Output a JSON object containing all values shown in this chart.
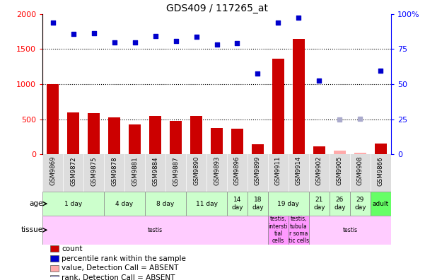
{
  "title": "GDS409 / 117265_at",
  "samples": [
    "GSM9869",
    "GSM9872",
    "GSM9875",
    "GSM9878",
    "GSM9881",
    "GSM9884",
    "GSM9887",
    "GSM9890",
    "GSM9893",
    "GSM9896",
    "GSM9899",
    "GSM9911",
    "GSM9914",
    "GSM9902",
    "GSM9905",
    "GSM9908",
    "GSM9866"
  ],
  "bar_values": [
    1000,
    600,
    590,
    530,
    430,
    550,
    480,
    550,
    375,
    370,
    145,
    1360,
    1650,
    110,
    50,
    20,
    155
  ],
  "dot_values_pct": [
    94,
    86,
    86.5,
    80,
    79.5,
    84.5,
    81,
    84,
    78,
    79,
    57.5,
    94,
    97.5,
    52.5,
    25,
    25.5,
    59.5
  ],
  "absent_indices": [
    14,
    15
  ],
  "bar_color": "#cc0000",
  "dot_color": "#0000cc",
  "absent_bar_color": "#ffaaaa",
  "absent_dot_color": "#aaaacc",
  "ylim_left": [
    0,
    2000
  ],
  "ylim_right": [
    0,
    100
  ],
  "yticks_left": [
    0,
    500,
    1000,
    1500,
    2000
  ],
  "yticks_right": [
    0,
    25,
    50,
    75,
    100
  ],
  "age_groups": [
    {
      "label": "1 day",
      "cols": [
        0,
        1,
        2
      ],
      "color": "#ccffcc"
    },
    {
      "label": "4 day",
      "cols": [
        3,
        4
      ],
      "color": "#ccffcc"
    },
    {
      "label": "8 day",
      "cols": [
        5,
        6
      ],
      "color": "#ccffcc"
    },
    {
      "label": "11 day",
      "cols": [
        7,
        8
      ],
      "color": "#ccffcc"
    },
    {
      "label": "14\nday",
      "cols": [
        9
      ],
      "color": "#ccffcc"
    },
    {
      "label": "18\nday",
      "cols": [
        10
      ],
      "color": "#ccffcc"
    },
    {
      "label": "19 day",
      "cols": [
        11,
        12
      ],
      "color": "#ccffcc"
    },
    {
      "label": "21\nday",
      "cols": [
        13
      ],
      "color": "#ccffcc"
    },
    {
      "label": "26\nday",
      "cols": [
        14
      ],
      "color": "#ccffcc"
    },
    {
      "label": "29\nday",
      "cols": [
        15
      ],
      "color": "#ccffcc"
    },
    {
      "label": "adult",
      "cols": [
        16
      ],
      "color": "#66ff66"
    }
  ],
  "tissue_groups": [
    {
      "label": "testis",
      "cols": [
        0,
        1,
        2,
        3,
        4,
        5,
        6,
        7,
        8,
        9,
        10
      ],
      "color": "#ffccff"
    },
    {
      "label": "testis,\nintersti\ntial\ncells",
      "cols": [
        11
      ],
      "color": "#ff99ff"
    },
    {
      "label": "testis,\ntubula\nr soma\ntic cells",
      "cols": [
        12
      ],
      "color": "#ff99ff"
    },
    {
      "label": "testis",
      "cols": [
        13,
        14,
        15,
        16
      ],
      "color": "#ffccff"
    }
  ],
  "legend_items": [
    {
      "label": "count",
      "color": "#cc0000"
    },
    {
      "label": "percentile rank within the sample",
      "color": "#0000cc"
    },
    {
      "label": "value, Detection Call = ABSENT",
      "color": "#ffaaaa"
    },
    {
      "label": "rank, Detection Call = ABSENT",
      "color": "#aaaacc"
    }
  ]
}
